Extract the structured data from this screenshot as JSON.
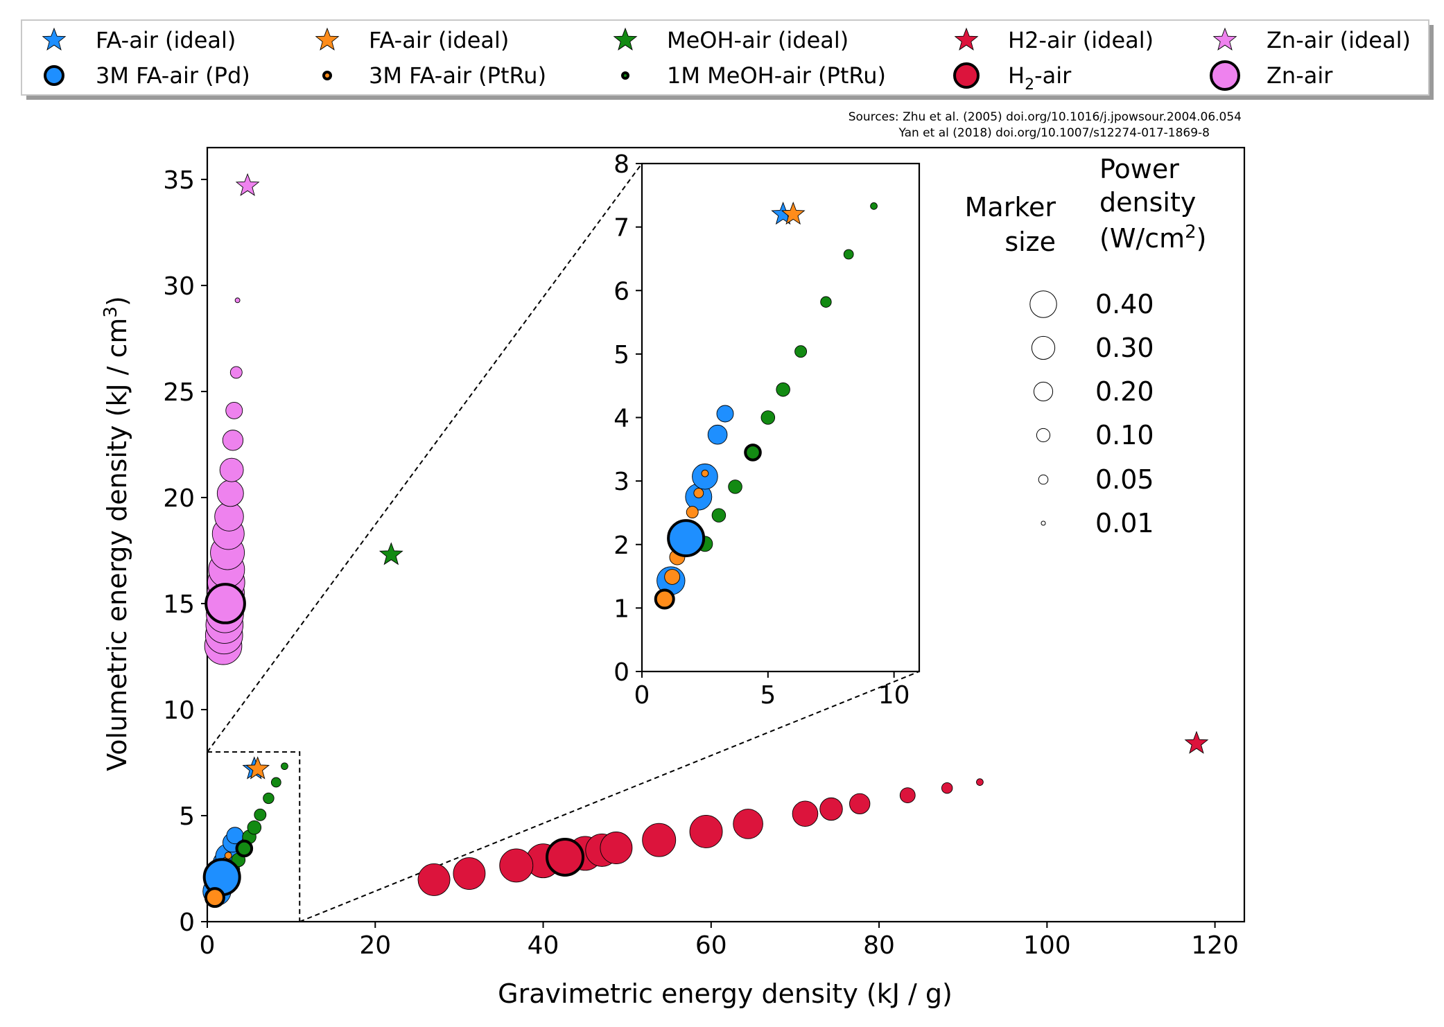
{
  "chart_data": {
    "type": "scatter",
    "xlabel": "Gravimetric energy density (kJ / g)",
    "ylabel_main": "Volumetric energy density (kJ / cm",
    "ylabel_sup": "3",
    "ylabel_end": ")",
    "xlim": [
      0,
      123.5
    ],
    "ylim": [
      0,
      36.5
    ],
    "xticks": [
      0,
      20,
      40,
      60,
      80,
      100,
      120
    ],
    "yticks": [
      0,
      5,
      10,
      15,
      20,
      25,
      30,
      35
    ],
    "grid": false,
    "sources": [
      "Sources: Zhu et al. (2005) doi.org/10.1016/j.jpowsour.2004.06.054",
      "Yan et al (2018) doi.org/10.1007/s12274-017-1869-8"
    ],
    "legend": {
      "placement": "top (outside)",
      "entries": [
        {
          "label": "FA-air (ideal)",
          "marker": "star",
          "color": "#1e8fff"
        },
        {
          "label": "FA-air (ideal)",
          "marker": "star",
          "color": "#ff8c1a"
        },
        {
          "label": "MeOH-air (ideal)",
          "marker": "star",
          "color": "#138a13"
        },
        {
          "label": "H2-air (ideal)",
          "marker": "star",
          "color": "#dc143c"
        },
        {
          "label": "Zn-air (ideal)",
          "marker": "star",
          "color": "#ee82ee"
        },
        {
          "label": "3M FA-air (Pd)",
          "marker": "circle",
          "color": "#1e8fff"
        },
        {
          "label": "3M FA-air (PtRu)",
          "marker": "circle",
          "color": "#ff8c1a"
        },
        {
          "label": "1M MeOH-air (PtRu)",
          "marker": "circle",
          "color": "#138a13"
        },
        {
          "label": "H",
          "label_sub": "2",
          "label_rest": "-air",
          "marker": "circle",
          "color": "#dc143c"
        },
        {
          "label": "Zn-air",
          "marker": "circle",
          "color": "#ee82ee"
        }
      ]
    },
    "size_legend": {
      "title_left": [
        "Marker",
        "size"
      ],
      "title_right": [
        "Power",
        "density",
        "(W/cm",
        "2",
        ")"
      ],
      "values": [
        "0.40",
        "0.30",
        "0.20",
        "0.10",
        "0.05",
        "0.01"
      ]
    },
    "ideal_points": [
      {
        "name": "FA-air (ideal)",
        "x": 5.6,
        "y": 7.2,
        "color": "#1e8fff"
      },
      {
        "name": "FA-air (ideal)",
        "x": 6.0,
        "y": 7.2,
        "color": "#ff8c1a"
      },
      {
        "name": "MeOH-air (ideal)",
        "x": 21.9,
        "y": 17.3,
        "color": "#138a13"
      },
      {
        "name": "H2-air (ideal)",
        "x": 117.8,
        "y": 8.4,
        "color": "#dc143c"
      },
      {
        "name": "Zn-air (ideal)",
        "x": 4.8,
        "y": 34.7,
        "color": "#ee82ee"
      }
    ],
    "series": [
      {
        "name": "3M FA-air (Pd)",
        "color": "#1e8fff",
        "x": [
          1.15,
          1.75,
          2.25,
          2.5,
          3.0,
          3.3
        ],
        "y": [
          1.43,
          2.1,
          2.75,
          3.07,
          3.73,
          4.06
        ],
        "power": [
          0.17,
          0.25,
          0.15,
          0.14,
          0.08,
          0.06
        ]
      },
      {
        "name": "3M FA-air (PtRu)",
        "color": "#ff8c1a",
        "x": [
          0.9,
          1.2,
          1.4,
          1.75,
          2.0,
          2.25,
          2.5
        ],
        "y": [
          1.14,
          1.49,
          1.8,
          2.15,
          2.51,
          2.81,
          3.12
        ],
        "power": [
          0.06,
          0.05,
          0.05,
          0.05,
          0.03,
          0.02,
          0.01
        ]
      },
      {
        "name": "1M MeOH-air (PtRu)",
        "color": "#138a13",
        "x": [
          2.5,
          3.05,
          3.7,
          4.4,
          5.0,
          5.6,
          6.3,
          7.3,
          8.2,
          9.2
        ],
        "y": [
          2.01,
          2.46,
          2.91,
          3.45,
          4.0,
          4.44,
          5.04,
          5.82,
          6.57,
          7.33
        ],
        "power": [
          0.05,
          0.04,
          0.04,
          0.04,
          0.04,
          0.04,
          0.03,
          0.025,
          0.02,
          0.01
        ]
      },
      {
        "name": "H2-air",
        "color": "#dc143c",
        "x": [
          27.0,
          31.2,
          36.8,
          40.0,
          42.6,
          45.0,
          47.0,
          48.7,
          53.8,
          59.4,
          64.4,
          71.2,
          74.3,
          77.7,
          83.4,
          88.1,
          92.0
        ],
        "y": [
          1.98,
          2.27,
          2.65,
          2.87,
          3.04,
          3.22,
          3.37,
          3.48,
          3.85,
          4.25,
          4.61,
          5.09,
          5.31,
          5.56,
          5.96,
          6.3,
          6.58
        ],
        "power": [
          0.22,
          0.22,
          0.24,
          0.25,
          0.26,
          0.25,
          0.23,
          0.22,
          0.24,
          0.23,
          0.19,
          0.14,
          0.11,
          0.09,
          0.05,
          0.025,
          0.01
        ]
      },
      {
        "name": "Zn-air",
        "color": "#ee82ee",
        "x": [
          1.9,
          2.0,
          2.05,
          2.1,
          2.15,
          2.2,
          2.25,
          2.3,
          2.4,
          2.5,
          2.6,
          2.75,
          2.9,
          3.05,
          3.2,
          3.45,
          3.6
        ],
        "y": [
          13.0,
          13.5,
          14.0,
          14.5,
          15.0,
          15.5,
          16.0,
          16.6,
          17.4,
          18.3,
          19.1,
          20.2,
          21.3,
          22.7,
          24.1,
          25.9,
          29.3
        ],
        "power": [
          0.3,
          0.3,
          0.3,
          0.3,
          0.3,
          0.3,
          0.3,
          0.28,
          0.25,
          0.22,
          0.18,
          0.15,
          0.12,
          0.09,
          0.06,
          0.03,
          0.005
        ]
      }
    ],
    "highlight_points": [
      {
        "series": "3M FA-air (Pd)",
        "x": 1.75,
        "y": 2.1
      },
      {
        "series": "3M FA-air (PtRu)",
        "x": 0.9,
        "y": 1.14
      },
      {
        "series": "1M MeOH-air (PtRu)",
        "x": 4.4,
        "y": 3.45
      },
      {
        "series": "H2-air",
        "x": 42.6,
        "y": 3.04
      },
      {
        "series": "Zn-air",
        "x": 2.15,
        "y": 15.0
      }
    ],
    "inset": {
      "xlim": [
        0,
        11
      ],
      "ylim": [
        0,
        8
      ],
      "xticks": [
        0,
        5,
        10
      ],
      "yticks": [
        0,
        1,
        2,
        3,
        4,
        5,
        6,
        7,
        8
      ]
    }
  }
}
